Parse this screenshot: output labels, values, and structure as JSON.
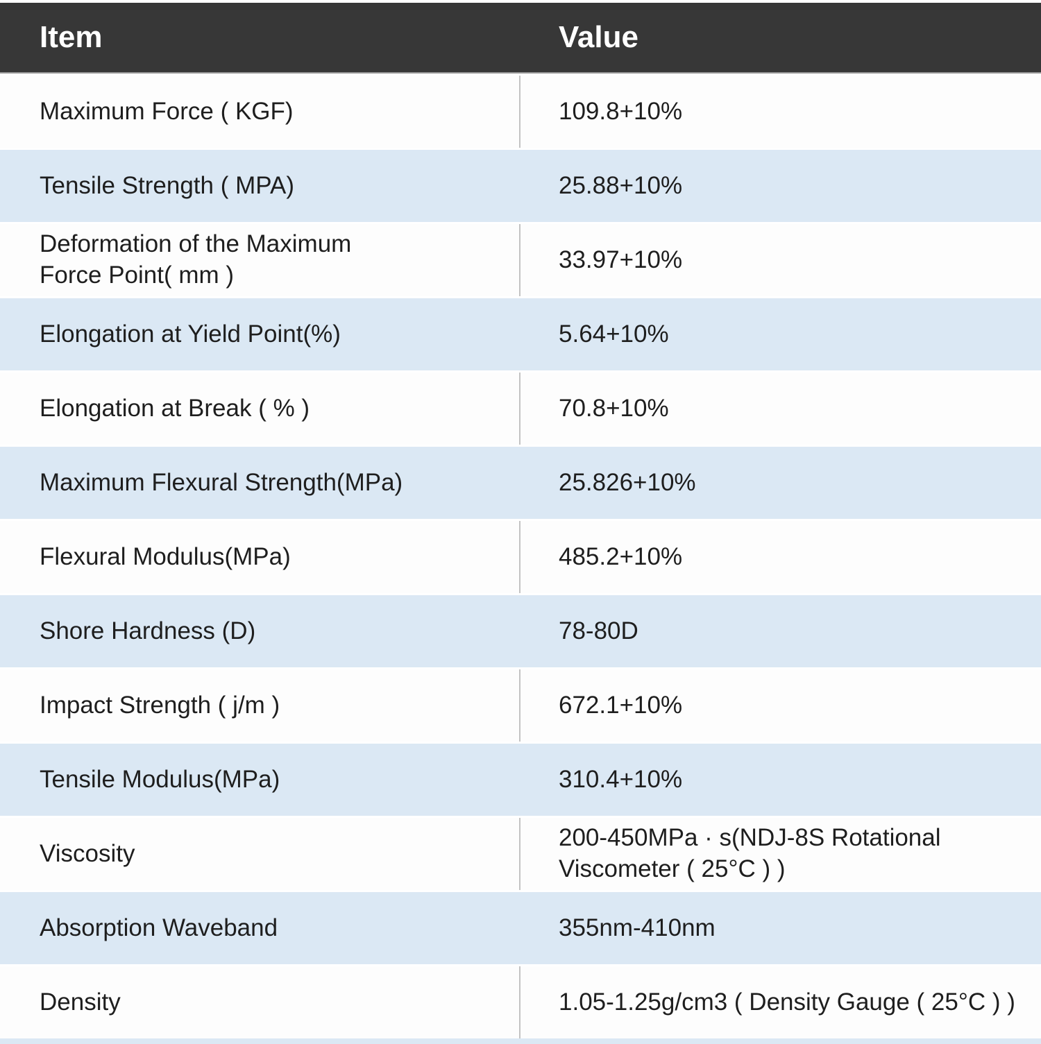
{
  "table": {
    "columns": [
      "Item",
      "Value"
    ],
    "rows": [
      {
        "item": "Maximum Force ( KGF)",
        "value": "109.8+10%"
      },
      {
        "item": "Tensile Strength ( MPA)",
        "value": "25.88+10%"
      },
      {
        "item": "Deformation of the Maximum\nForce Point( mm )",
        "value": "33.97+10%"
      },
      {
        "item": "Elongation at Yield Point(%)",
        "value": "5.64+10%"
      },
      {
        "item": "Elongation at Break ( % )",
        "value": "70.8+10%"
      },
      {
        "item": "Maximum Flexural Strength(MPa)",
        "value": "25.826+10%"
      },
      {
        "item": "Flexural Modulus(MPa)",
        "value": "485.2+10%"
      },
      {
        "item": "Shore Hardness (D)",
        "value": "78-80D"
      },
      {
        "item": "Impact Strength ( j/m )",
        "value": "672.1+10%"
      },
      {
        "item": "Tensile Modulus(MPa)",
        "value": "310.4+10%"
      },
      {
        "item": "Viscosity",
        "value": "200-450MPa · s(NDJ-8S Rotational\nViscometer ( 25°C ) )"
      },
      {
        "item": "Absorption Waveband",
        "value": "355nm-410nm"
      },
      {
        "item": "Density",
        "value": "1.05-1.25g/cm3 ( Density Gauge ( 25°C ) )"
      }
    ],
    "colors": {
      "header_bg": "#373737",
      "header_text": "#ffffff",
      "row_bg": "#fdfdfd",
      "row_alt_bg": "#dbe8f4",
      "column_divider": "#c3c3c3"
    }
  }
}
